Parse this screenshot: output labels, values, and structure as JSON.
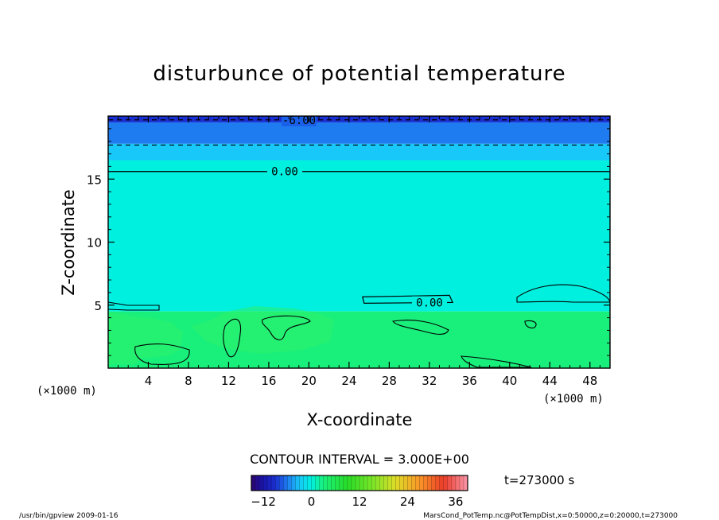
{
  "chart_data": {
    "type": "heatmap",
    "title": "disturbunce of potential temperature",
    "xlabel": "X-coordinate",
    "ylabel": "Z-coordinate",
    "x_unit": "(×1000 m)",
    "y_unit": "(×1000 m)",
    "xlim": [
      0,
      50
    ],
    "ylim": [
      0,
      20
    ],
    "x_ticks": [
      "4",
      "8",
      "12",
      "16",
      "20",
      "24",
      "28",
      "32",
      "36",
      "40",
      "44",
      "48"
    ],
    "x_tick_values": [
      4,
      8,
      12,
      16,
      20,
      24,
      28,
      32,
      36,
      40,
      44,
      48
    ],
    "y_ticks": [
      "5",
      "10",
      "15"
    ],
    "y_tick_values": [
      5,
      10,
      15
    ],
    "contour_interval_label": "CONTOUR INTERVAL = 3.000E+00",
    "contour_labels": [
      "-6.00",
      "0.00",
      "0.00"
    ],
    "contour_lines": [
      {
        "label": "-6.00",
        "z": 19.7,
        "style": "dashed"
      },
      {
        "label": "",
        "z": 17.7,
        "style": "dashed"
      },
      {
        "label": "0.00",
        "z": 15.6,
        "style": "solid"
      },
      {
        "label": "0.00",
        "z": 5.4,
        "style": "solid",
        "x_range": [
          25.5,
          34
        ]
      }
    ],
    "bands": [
      {
        "z_from": 19.5,
        "z_to": 20,
        "value": -9
      },
      {
        "z_from": 17.8,
        "z_to": 19.5,
        "value": -6
      },
      {
        "z_from": 16.5,
        "z_to": 17.8,
        "value": -3
      },
      {
        "z_from": 4.5,
        "z_to": 16.5,
        "value": 0
      },
      {
        "z_from": 0,
        "z_to": 4.5,
        "value": 3
      }
    ],
    "colorbar_ticks": [
      "−12",
      "0",
      "12",
      "24",
      "36"
    ],
    "colorbar_tick_values": [
      -12,
      0,
      12,
      24,
      36
    ],
    "colorbar_range": [
      -15,
      39
    ],
    "time_label": "t=273000 s",
    "colors": {
      "dark_blue": "#1a2fd0",
      "blue": "#1f7cf0",
      "light_blue": "#18c8f8",
      "cyan": "#00f0e0",
      "green": "#19f07c"
    }
  },
  "footer": {
    "left": "/usr/bin/gpview   2009-01-16",
    "right": "MarsCond_PotTemp.nc@PotTempDist,x=0:50000,z=0:20000,t=273000"
  }
}
